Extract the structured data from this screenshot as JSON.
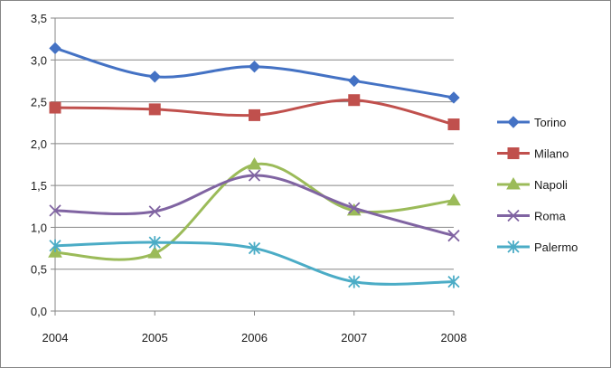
{
  "chart_data": {
    "type": "line",
    "categories": [
      "2004",
      "2005",
      "2006",
      "2007",
      "2008"
    ],
    "ylim": [
      0,
      3.5
    ],
    "yticks": [
      "0,0",
      "0,5",
      "1,0",
      "1,5",
      "2,0",
      "2,5",
      "3,0",
      "3,5"
    ],
    "grid": true,
    "legend_position": "right",
    "series": [
      {
        "name": "Torino",
        "color": "#4472C4",
        "marker": "diamond",
        "values": [
          3.14,
          2.8,
          2.92,
          2.75,
          2.55
        ]
      },
      {
        "name": "Milano",
        "color": "#C0504D",
        "marker": "square",
        "values": [
          2.43,
          2.41,
          2.34,
          2.52,
          2.23
        ]
      },
      {
        "name": "Napoli",
        "color": "#9BBB59",
        "marker": "triangle",
        "values": [
          0.7,
          0.69,
          1.75,
          1.2,
          1.32
        ]
      },
      {
        "name": "Roma",
        "color": "#8064A2",
        "marker": "x",
        "values": [
          1.2,
          1.19,
          1.62,
          1.23,
          0.9
        ]
      },
      {
        "name": "Palermo",
        "color": "#4BACC6",
        "marker": "star",
        "values": [
          0.78,
          0.82,
          0.75,
          0.35,
          0.35
        ]
      }
    ]
  }
}
